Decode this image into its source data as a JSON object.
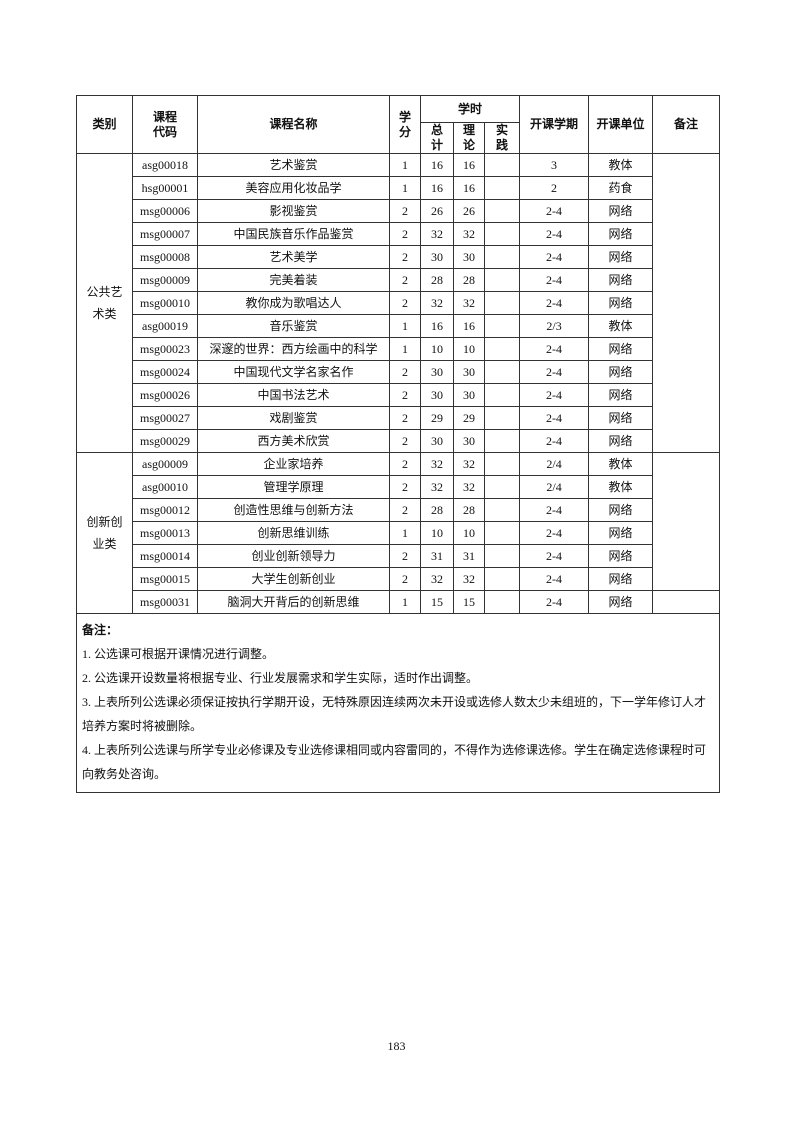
{
  "headers": {
    "category": "类别",
    "code": "课程\n代码",
    "name": "课程名称",
    "credit": "学\n分",
    "hours": "学时",
    "total": "总\n计",
    "theory": "理\n论",
    "practice": "实\n践",
    "term": "开课学期",
    "unit": "开课单位",
    "remarks": "备注"
  },
  "groups": [
    {
      "category": "公共艺\n术类",
      "rows": [
        [
          "asg00018",
          "艺术鉴赏",
          "1",
          "16",
          "16",
          "",
          "3",
          "教体"
        ],
        [
          "hsg00001",
          "美容应用化妆品学",
          "1",
          "16",
          "16",
          "",
          "2",
          "药食"
        ],
        [
          "msg00006",
          "影视鉴赏",
          "2",
          "26",
          "26",
          "",
          "2-4",
          "网络"
        ],
        [
          "msg00007",
          "中国民族音乐作品鉴赏",
          "2",
          "32",
          "32",
          "",
          "2-4",
          "网络"
        ],
        [
          "msg00008",
          "艺术美学",
          "2",
          "30",
          "30",
          "",
          "2-4",
          "网络"
        ],
        [
          "msg00009",
          "完美着装",
          "2",
          "28",
          "28",
          "",
          "2-4",
          "网络"
        ],
        [
          "msg00010",
          "教你成为歌唱达人",
          "2",
          "32",
          "32",
          "",
          "2-4",
          "网络"
        ],
        [
          "asg00019",
          "音乐鉴赏",
          "1",
          "16",
          "16",
          "",
          "2/3",
          "教体"
        ],
        [
          "msg00023",
          "深邃的世界：西方绘画中的科学",
          "1",
          "10",
          "10",
          "",
          "2-4",
          "网络"
        ],
        [
          "msg00024",
          "中国现代文学名家名作",
          "2",
          "30",
          "30",
          "",
          "2-4",
          "网络"
        ],
        [
          "msg00026",
          "中国书法艺术",
          "2",
          "30",
          "30",
          "",
          "2-4",
          "网络"
        ],
        [
          "msg00027",
          "戏剧鉴赏",
          "2",
          "29",
          "29",
          "",
          "2-4",
          "网络"
        ],
        [
          "msg00029",
          "西方美术欣赏",
          "2",
          "30",
          "30",
          "",
          "2-4",
          "网络"
        ]
      ]
    },
    {
      "category": "创新创\n业类",
      "rows": [
        [
          "asg00009",
          "企业家培养",
          "2",
          "32",
          "32",
          "",
          "2/4",
          "教体"
        ],
        [
          "asg00010",
          "管理学原理",
          "2",
          "32",
          "32",
          "",
          "2/4",
          "教体"
        ],
        [
          "msg00012",
          "创造性思维与创新方法",
          "2",
          "28",
          "28",
          "",
          "2-4",
          "网络"
        ],
        [
          "msg00013",
          "创新思维训练",
          "1",
          "10",
          "10",
          "",
          "2-4",
          "网络"
        ],
        [
          "msg00014",
          "创业创新领导力",
          "2",
          "31",
          "31",
          "",
          "2-4",
          "网络"
        ],
        [
          "msg00015",
          "大学生创新创业",
          "2",
          "32",
          "32",
          "",
          "2-4",
          "网络"
        ],
        [
          "msg00031",
          "脑洞大开背后的创新思维",
          "1",
          "15",
          "15",
          "",
          "2-4",
          "网络"
        ]
      ]
    }
  ],
  "notes": {
    "title": "备注：",
    "items": [
      "1. 公选课可根据开课情况进行调整。",
      "2. 公选课开设数量将根据专业、行业发展需求和学生实际，适时作出调整。",
      "3. 上表所列公选课必须保证按执行学期开设，无特殊原因连续两次未开设或选修人数太少未组班的，下一学年修订人才培养方案时将被删除。",
      "4. 上表所列公选课与所学专业必修课及专业选修课相同或内容雷同的，不得作为选修课选修。学生在确定选修课程时可向教务处咨询。"
    ]
  },
  "page_number": "183"
}
